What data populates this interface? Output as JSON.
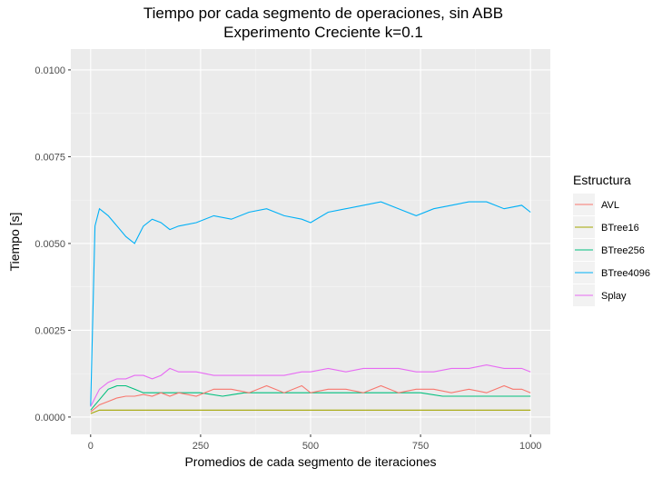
{
  "chart_data": {
    "type": "line",
    "title": "Tiempo por cada segmento de operaciones, sin ABB",
    "subtitle": "Experimento Creciente k=0.1",
    "xlabel": "Promedios de cada segmento de iteraciones",
    "ylabel": "Tiempo [s]",
    "xlim": [
      -45,
      1045
    ],
    "ylim": [
      -0.0005,
      0.0106
    ],
    "x_ticks": [
      0,
      250,
      500,
      750,
      1000
    ],
    "x_tick_labels": [
      "0",
      "250",
      "500",
      "750",
      "1000"
    ],
    "y_ticks": [
      0,
      0.0025,
      0.005,
      0.0075,
      0.01
    ],
    "y_tick_labels": [
      "0.0000",
      "0.0025",
      "0.0050",
      "0.0075",
      "0.0100"
    ],
    "grid": true,
    "legend": {
      "title": "Estructura",
      "position": "right"
    },
    "series": [
      {
        "name": "AVL",
        "color": "#F8766D",
        "x": [
          0,
          20,
          40,
          60,
          80,
          100,
          120,
          140,
          160,
          180,
          200,
          240,
          280,
          320,
          360,
          400,
          440,
          480,
          500,
          540,
          580,
          620,
          660,
          700,
          740,
          780,
          820,
          860,
          900,
          940,
          960,
          980,
          1000
        ],
        "y": [
          0.00015,
          0.00035,
          0.00045,
          0.00055,
          0.0006,
          0.0006,
          0.00065,
          0.0006,
          0.0007,
          0.0006,
          0.0007,
          0.0006,
          0.0008,
          0.0008,
          0.0007,
          0.0009,
          0.0007,
          0.0009,
          0.0007,
          0.0008,
          0.0008,
          0.0007,
          0.0009,
          0.0007,
          0.0008,
          0.0008,
          0.0007,
          0.0008,
          0.0007,
          0.0009,
          0.0008,
          0.0008,
          0.0007
        ]
      },
      {
        "name": "BTree16",
        "color": "#A3A500",
        "x": [
          0,
          20,
          40,
          60,
          80,
          100,
          120,
          140,
          160,
          200,
          250,
          300,
          350,
          400,
          450,
          500,
          550,
          600,
          650,
          700,
          750,
          800,
          850,
          900,
          950,
          1000
        ],
        "y": [
          0.0001,
          0.0002,
          0.0002,
          0.0002,
          0.0002,
          0.0002,
          0.0002,
          0.0002,
          0.0002,
          0.0002,
          0.0002,
          0.0002,
          0.0002,
          0.0002,
          0.0002,
          0.0002,
          0.0002,
          0.0002,
          0.0002,
          0.0002,
          0.0002,
          0.0002,
          0.0002,
          0.0002,
          0.0002,
          0.0002
        ]
      },
      {
        "name": "BTree256",
        "color": "#00BF7D",
        "x": [
          0,
          20,
          40,
          60,
          80,
          100,
          120,
          140,
          160,
          200,
          250,
          300,
          350,
          400,
          450,
          500,
          550,
          600,
          650,
          700,
          750,
          800,
          850,
          900,
          950,
          1000
        ],
        "y": [
          0.0002,
          0.0005,
          0.0008,
          0.0009,
          0.0009,
          0.0008,
          0.0007,
          0.0007,
          0.0007,
          0.0007,
          0.0007,
          0.0006,
          0.0007,
          0.0007,
          0.0007,
          0.0007,
          0.0007,
          0.0007,
          0.0007,
          0.0007,
          0.0007,
          0.0006,
          0.0006,
          0.0006,
          0.0006,
          0.0006
        ]
      },
      {
        "name": "BTree4096",
        "color": "#00B0F6",
        "x": [
          0,
          10,
          20,
          40,
          60,
          80,
          100,
          120,
          140,
          160,
          180,
          200,
          240,
          280,
          320,
          360,
          400,
          440,
          480,
          500,
          540,
          580,
          620,
          660,
          700,
          740,
          780,
          820,
          860,
          900,
          940,
          980,
          1000
        ],
        "y": [
          0.0003,
          0.0055,
          0.006,
          0.0058,
          0.0055,
          0.0052,
          0.005,
          0.0055,
          0.0057,
          0.0056,
          0.0054,
          0.0055,
          0.0056,
          0.0058,
          0.0057,
          0.0059,
          0.006,
          0.0058,
          0.0057,
          0.0056,
          0.0059,
          0.006,
          0.0061,
          0.0062,
          0.006,
          0.0058,
          0.006,
          0.0061,
          0.0062,
          0.0062,
          0.006,
          0.0061,
          0.0059
        ]
      },
      {
        "name": "Splay",
        "color": "#E76BF3",
        "x": [
          0,
          20,
          40,
          60,
          80,
          100,
          120,
          140,
          160,
          180,
          200,
          240,
          280,
          320,
          360,
          400,
          440,
          480,
          500,
          540,
          580,
          620,
          660,
          700,
          740,
          780,
          820,
          860,
          900,
          940,
          980,
          1000
        ],
        "y": [
          0.0003,
          0.0008,
          0.001,
          0.0011,
          0.0011,
          0.0012,
          0.0012,
          0.0011,
          0.0012,
          0.0014,
          0.0013,
          0.0013,
          0.0012,
          0.0012,
          0.0012,
          0.0012,
          0.0012,
          0.0013,
          0.0013,
          0.0014,
          0.0013,
          0.0014,
          0.0014,
          0.0014,
          0.0013,
          0.0013,
          0.0014,
          0.0014,
          0.0015,
          0.0014,
          0.0014,
          0.0013
        ]
      }
    ]
  }
}
